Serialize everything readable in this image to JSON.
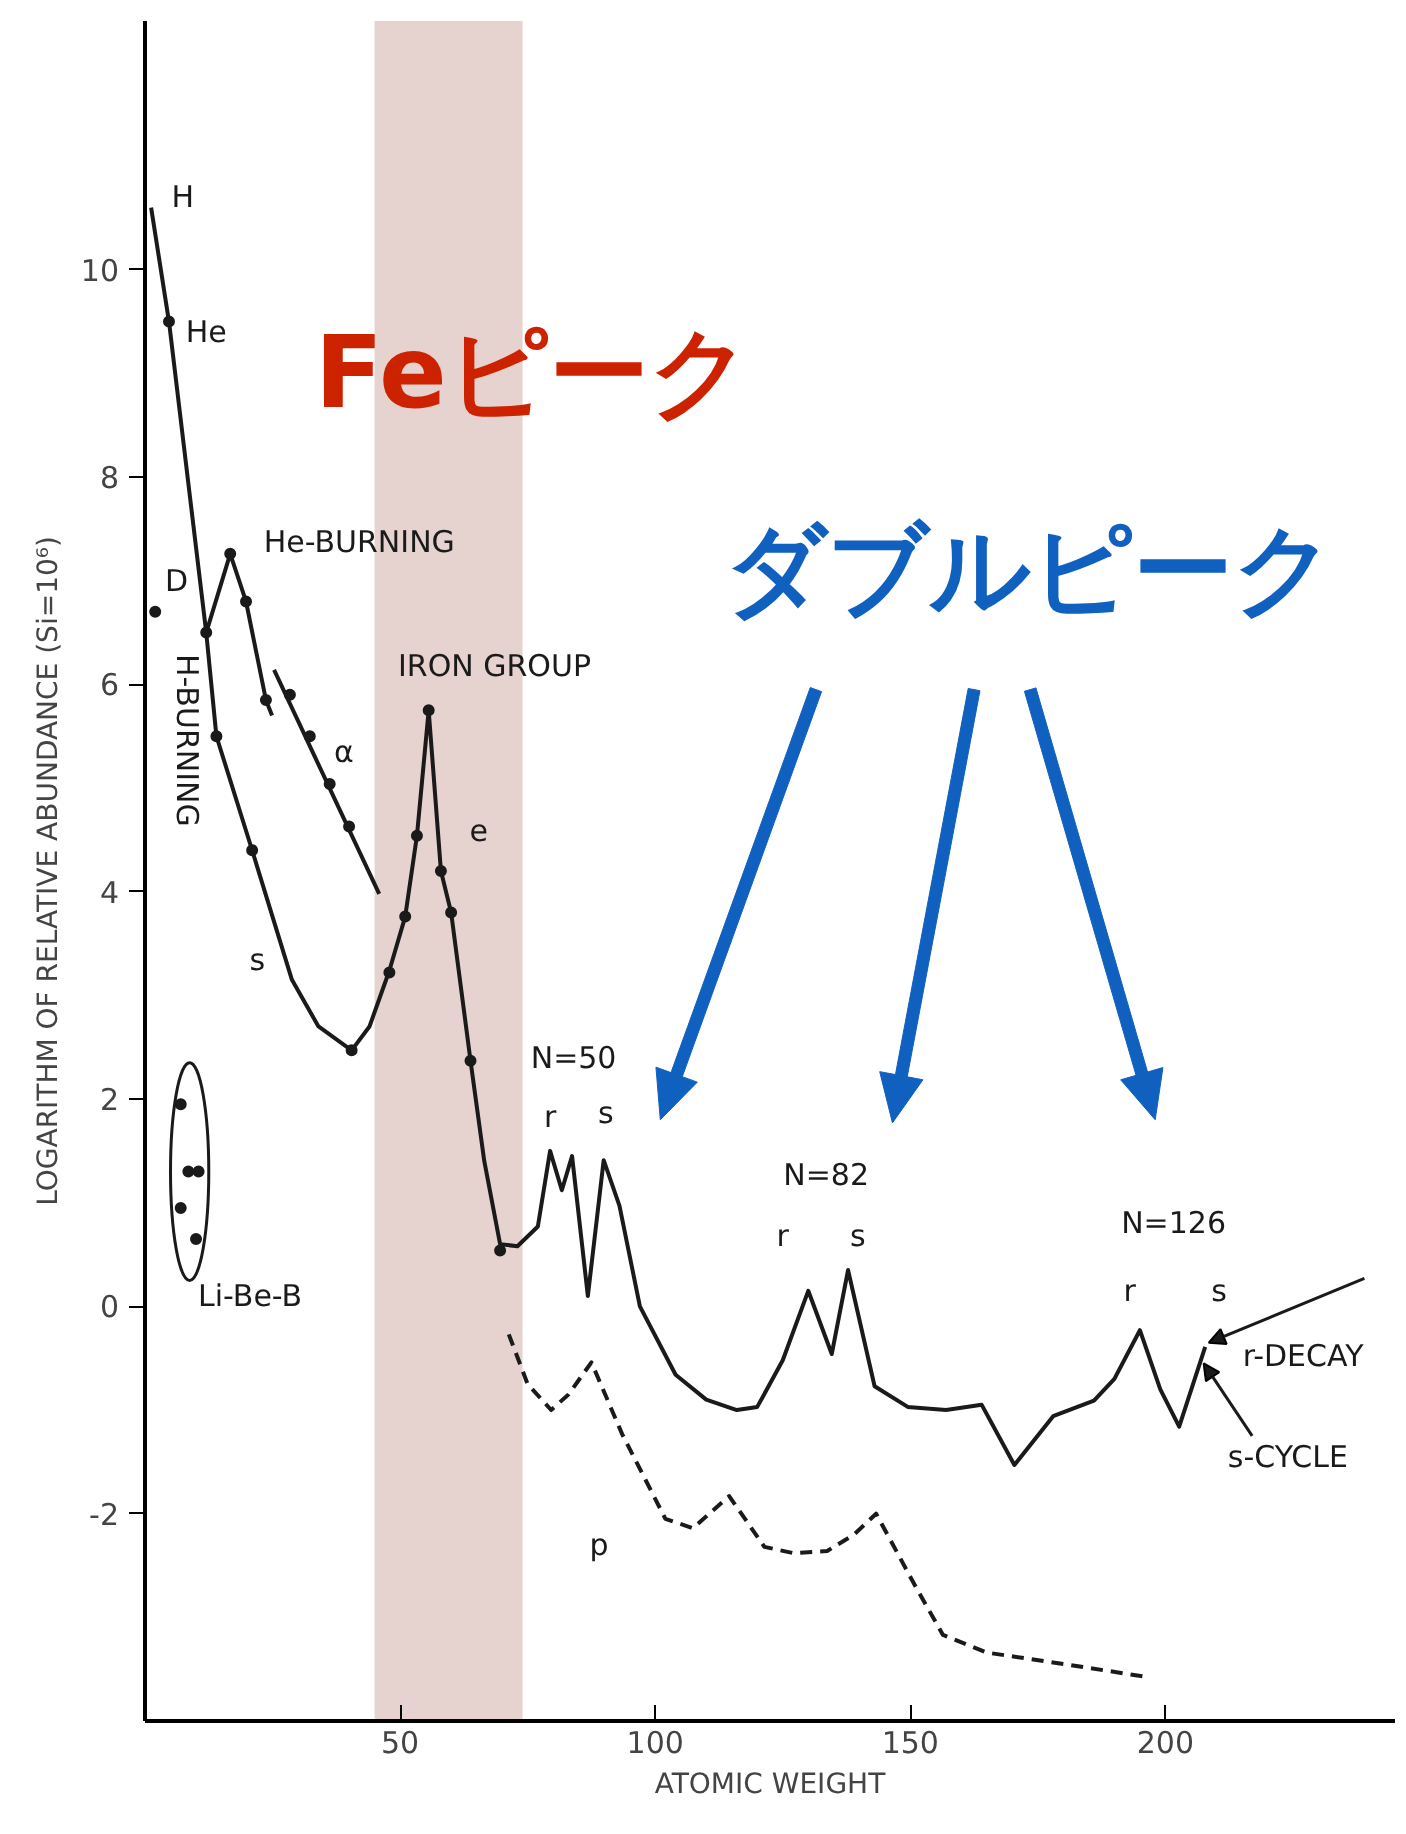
{
  "chart_data": {
    "type": "line",
    "xlabel": "ATOMIC WEIGHT",
    "ylabel": "LOGARITHM OF RELATIVE ABUNDANCE (Si=10⁶)",
    "xlim": [
      0,
      245
    ],
    "ylim": [
      -4,
      12.4
    ],
    "xticks": [
      50,
      100,
      150,
      200
    ],
    "yticks": [
      -2,
      0,
      2,
      4,
      6,
      8,
      10
    ],
    "bands": [
      {
        "axis": "x",
        "from": 45,
        "to": 74,
        "color": "#e6d3cf"
      }
    ],
    "series": [
      {
        "color": "#1a1a1a",
        "line_style": "solid",
        "marker": "none",
        "x": [
          1.2,
          4.7,
          12,
          14,
          21,
          28.8,
          34,
          40.5,
          44,
          47.9,
          51,
          53.3,
          55.6,
          58,
          60,
          63.8,
          66.5,
          69.6,
          73,
          77,
          79.4,
          81.7,
          83.7,
          86.8,
          89.9,
          93,
          97,
          104,
          110,
          116,
          120,
          125,
          130,
          134.6,
          137.8,
          143,
          149.5,
          157,
          164,
          170.4,
          178,
          186,
          190,
          195,
          199,
          202.7,
          207.8
        ],
        "values": [
          10.6,
          9.5,
          6.5,
          5.5,
          4.4,
          3.15,
          2.7,
          2.47,
          2.7,
          3.24,
          3.76,
          4.54,
          5.75,
          4.2,
          3.8,
          2.37,
          1.4,
          0.6,
          0.58,
          0.77,
          1.5,
          1.12,
          1.45,
          0.1,
          1.41,
          0.97,
          0.0,
          -0.66,
          -0.9,
          -1.0,
          -0.97,
          -0.52,
          0.15,
          -0.46,
          0.35,
          -0.77,
          -0.97,
          -1.0,
          -0.95,
          -1.53,
          -1.06,
          -0.91,
          -0.7,
          -0.23,
          -0.8,
          -1.16,
          -0.39
        ]
      },
      {
        "color": "#1a1a1a",
        "line_style": "solid",
        "marker": "none",
        "x": [
          12,
          16.7,
          19.8,
          23.7,
          24.9
        ],
        "values": [
          6.5,
          7.26,
          6.8,
          5.85,
          5.7
        ]
      },
      {
        "color": "#1a1a1a",
        "line_style": "solid",
        "marker": "none",
        "x": [
          25.3,
          45.9
        ],
        "values": [
          6.14,
          3.98
        ]
      },
      {
        "color": "#1a1a1a",
        "line_style": "dashed",
        "marker": "none",
        "x": [
          71.3,
          75,
          79.6,
          83,
          87.5,
          93.5,
          102,
          107.4,
          114.5,
          121.4,
          127,
          133.7,
          139,
          143.3,
          151,
          156.4,
          165,
          180,
          195.7
        ],
        "values": [
          -0.27,
          -0.75,
          -1.0,
          -0.85,
          -0.54,
          -1.23,
          -2.05,
          -2.14,
          -1.83,
          -2.32,
          -2.38,
          -2.36,
          -2.2,
          -2.0,
          -2.7,
          -3.17,
          -3.34,
          -3.45,
          -3.57
        ]
      },
      {
        "type": "scatter",
        "color": "#1a1a1a",
        "marker": "circle",
        "x": [
          2,
          4.7,
          12,
          14,
          16.7,
          19.8,
          21,
          23.7,
          28.4,
          32.3,
          36.2,
          40,
          40.5,
          47.9,
          51,
          53.3,
          55.6,
          58,
          60,
          63.8,
          69.6
        ],
        "values": [
          6.7,
          9.5,
          6.5,
          5.5,
          7.26,
          6.8,
          4.4,
          5.85,
          5.9,
          5.5,
          5.04,
          4.63,
          2.47,
          3.22,
          3.76,
          4.54,
          5.75,
          4.2,
          3.8,
          2.37,
          0.54
        ]
      },
      {
        "type": "scatter",
        "color": "#1a1a1a",
        "marker": "circle",
        "x": [
          7,
          10.5,
          8.5,
          7,
          10
        ],
        "values": [
          1.95,
          1.3,
          1.3,
          0.95,
          0.65
        ]
      }
    ],
    "annotations": [
      "H",
      "He",
      "D",
      "He-BURNING",
      "H-BURNING",
      "α",
      "e",
      "s",
      "IRON GROUP",
      "Li-Be-B",
      "N=50",
      "r",
      "s",
      "N=82",
      "r",
      "s",
      "N=126",
      "r",
      "s",
      {
        "text": "r-DECAY",
        "x": 208.5,
        "y": -0.35
      },
      {
        "text": "s-CYCLE",
        "x": 207.5,
        "y": -0.55
      },
      "p",
      "Feピーク",
      "ダブルピーク"
    ]
  }
}
